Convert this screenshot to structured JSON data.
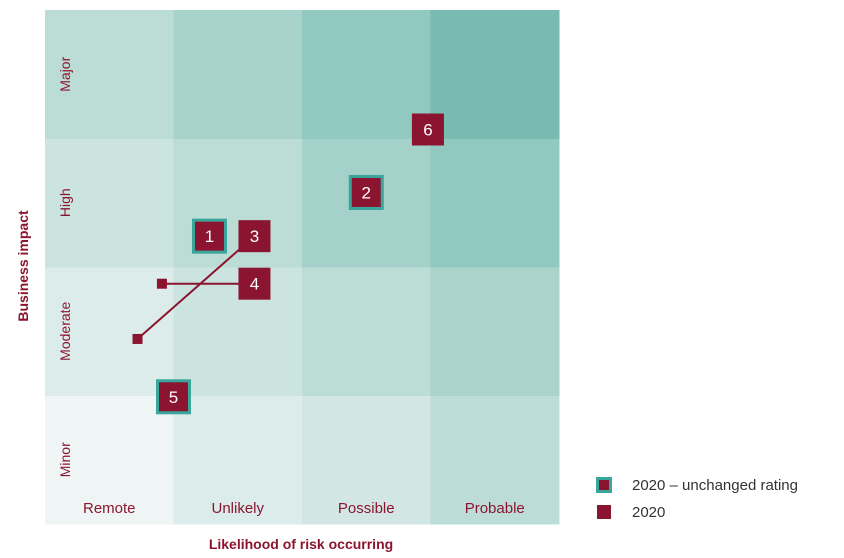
{
  "chart_data": {
    "type": "risk_matrix",
    "xlabel": "Likelihood of risk occurring",
    "ylabel": "Business impact",
    "x_categories": [
      "Remote",
      "Unlikely",
      "Possible",
      "Probable"
    ],
    "y_categories": [
      "Minor",
      "Moderate",
      "High",
      "Major"
    ],
    "cell_colors": [
      [
        "#eef5f4",
        "#dcecea",
        "#d2e7e4",
        "#bcdcd7"
      ],
      [
        "#dcecea",
        "#cce4e0",
        "#bcdcd6",
        "#aad3cc"
      ],
      [
        "#cce4e0",
        "#bcdcd6",
        "#a4d1c9",
        "#91c8bf"
      ],
      [
        "#bcdcd6",
        "#a8d3cb",
        "#91c8bf",
        "#78bcb1"
      ]
    ],
    "risks": [
      {
        "id": "1",
        "label": "1",
        "x": 1.28,
        "y": 2.24,
        "unchanged": true
      },
      {
        "id": "2",
        "label": "2",
        "x": 2.5,
        "y": 2.58,
        "unchanged": true
      },
      {
        "id": "3",
        "label": "3",
        "x": 1.63,
        "y": 2.24,
        "unchanged": false,
        "from": {
          "x": 0.72,
          "y": 1.44
        }
      },
      {
        "id": "4",
        "label": "4",
        "x": 1.63,
        "y": 1.87,
        "unchanged": false,
        "from": {
          "x": 0.91,
          "y": 1.87
        }
      },
      {
        "id": "5",
        "label": "5",
        "x": 1.0,
        "y": 0.99,
        "unchanged": true
      },
      {
        "id": "6",
        "label": "6",
        "x": 2.98,
        "y": 3.07,
        "unchanged": false
      }
    ],
    "legend": [
      {
        "type": "unchanged",
        "label": "2020 – unchanged rating"
      },
      {
        "type": "plain",
        "label": "2020"
      }
    ],
    "colors": {
      "marker": "#8b1530",
      "marker_border": "#3aa59b",
      "category_text": "#8b1530",
      "axis_title": "#8b1530"
    }
  }
}
